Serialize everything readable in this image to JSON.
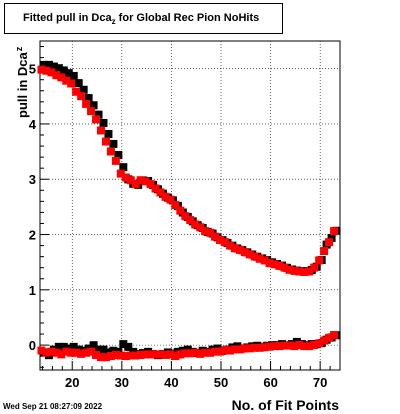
{
  "chart_data": {
    "type": "scatter",
    "title": {
      "main": "Fitted pull in Dca",
      "sub": "z",
      "rest": " for Global Rec Pion NoHits"
    },
    "xlabel": "No. of Fit Points",
    "ylabel": {
      "main": "pull in Dca",
      "sub": "z"
    },
    "xlim": [
      13.5,
      74
    ],
    "ylim": [
      -0.45,
      5.5
    ],
    "xticks": [
      20,
      30,
      40,
      50,
      60,
      70
    ],
    "yticks": [
      0,
      1,
      2,
      3,
      4,
      5
    ],
    "grid": true,
    "grid_style": "dotted",
    "marker": "square",
    "series": [
      {
        "color": "#000000",
        "groups": [
          {
            "x": [
              14,
              15,
              16,
              17,
              18,
              19,
              20,
              21,
              22,
              23,
              24,
              25,
              26,
              27,
              28,
              29,
              30,
              31,
              32,
              33,
              34,
              35,
              36,
              37,
              38,
              39,
              40,
              41,
              42,
              43,
              44,
              45,
              46,
              47,
              48,
              49,
              50,
              51,
              52,
              53,
              54,
              55,
              56,
              57,
              58,
              59,
              60,
              61,
              62,
              63,
              64,
              65,
              66,
              67,
              68,
              69,
              70,
              71,
              72,
              73
            ],
            "y": [
              5.05,
              5.05,
              5.02,
              4.99,
              4.95,
              4.9,
              4.85,
              4.72,
              4.6,
              4.45,
              4.32,
              4.15,
              4.0,
              3.8,
              3.62,
              3.42,
              3.2,
              2.98,
              2.9,
              2.88,
              2.96,
              2.95,
              2.88,
              2.8,
              2.72,
              2.65,
              2.6,
              2.5,
              2.38,
              2.3,
              2.22,
              2.15,
              2.1,
              2.03,
              2.0,
              1.93,
              1.88,
              1.83,
              1.78,
              1.73,
              1.7,
              1.66,
              1.62,
              1.58,
              1.55,
              1.52,
              1.48,
              1.45,
              1.42,
              1.38,
              1.35,
              1.33,
              1.32,
              1.32,
              1.34,
              1.4,
              1.52,
              1.8,
              1.92,
              2.05
            ]
          },
          {
            "x": [
              14,
              15,
              16,
              17,
              18,
              19,
              20,
              21,
              22,
              23,
              24,
              25,
              26,
              27,
              28,
              29,
              30,
              31,
              32,
              33,
              34,
              35,
              36,
              37,
              38,
              39,
              40,
              41,
              42,
              43,
              44,
              45,
              46,
              47,
              48,
              49,
              50,
              51,
              52,
              53,
              54,
              55,
              56,
              57,
              58,
              59,
              60,
              61,
              62,
              63,
              64,
              65,
              66,
              67,
              68,
              69,
              70,
              71,
              72,
              73
            ],
            "y": [
              -0.15,
              -0.2,
              -0.1,
              -0.05,
              -0.05,
              -0.08,
              -0.05,
              -0.1,
              -0.12,
              -0.08,
              -0.02,
              -0.1,
              -0.1,
              -0.15,
              -0.12,
              -0.14,
              0.0,
              -0.05,
              -0.14,
              -0.18,
              -0.16,
              -0.14,
              -0.18,
              -0.2,
              -0.18,
              -0.15,
              -0.17,
              -0.14,
              -0.12,
              -0.1,
              -0.14,
              -0.16,
              -0.12,
              -0.14,
              -0.1,
              -0.08,
              -0.12,
              -0.1,
              -0.06,
              -0.04,
              -0.08,
              -0.06,
              -0.04,
              -0.03,
              -0.05,
              -0.03,
              -0.02,
              -0.02,
              0.0,
              -0.02,
              0.0,
              0.04,
              0.0,
              -0.02,
              0.0,
              0.0,
              0.02,
              0.08,
              0.12,
              0.16
            ]
          }
        ]
      },
      {
        "color": "#ff0000",
        "groups": [
          {
            "x": [
              14,
              15,
              16,
              17,
              18,
              19,
              20,
              21,
              22,
              23,
              24,
              25,
              26,
              27,
              28,
              29,
              30,
              31,
              32,
              33,
              34,
              35,
              36,
              37,
              38,
              39,
              40,
              41,
              42,
              43,
              44,
              45,
              46,
              47,
              48,
              49,
              50,
              51,
              52,
              53,
              54,
              55,
              56,
              57,
              58,
              59,
              60,
              61,
              62,
              63,
              64,
              65,
              66,
              67,
              68,
              69,
              70,
              71,
              72,
              73
            ],
            "y": [
              5.0,
              4.98,
              4.95,
              4.9,
              4.86,
              4.8,
              4.75,
              4.6,
              4.52,
              4.38,
              4.25,
              4.1,
              3.9,
              3.7,
              3.52,
              3.35,
              3.12,
              3.05,
              3.0,
              2.93,
              3.0,
              2.98,
              2.93,
              2.85,
              2.78,
              2.7,
              2.65,
              2.55,
              2.45,
              2.35,
              2.28,
              2.2,
              2.15,
              2.08,
              2.05,
              1.98,
              1.92,
              1.88,
              1.82,
              1.77,
              1.74,
              1.7,
              1.66,
              1.62,
              1.58,
              1.55,
              1.5,
              1.48,
              1.45,
              1.42,
              1.38,
              1.36,
              1.35,
              1.34,
              1.35,
              1.42,
              1.55,
              1.72,
              1.88,
              2.08
            ]
          },
          {
            "x": [
              14,
              15,
              16,
              17,
              18,
              19,
              20,
              21,
              22,
              23,
              24,
              25,
              26,
              27,
              28,
              29,
              30,
              31,
              32,
              33,
              34,
              35,
              36,
              37,
              38,
              39,
              40,
              41,
              42,
              43,
              44,
              45,
              46,
              47,
              48,
              49,
              50,
              51,
              52,
              53,
              54,
              55,
              56,
              57,
              58,
              59,
              60,
              61,
              62,
              63,
              64,
              65,
              66,
              67,
              68,
              69,
              70,
              71,
              72,
              73
            ],
            "y": [
              -0.08,
              -0.12,
              -0.1,
              -0.12,
              -0.15,
              -0.1,
              -0.12,
              -0.12,
              -0.14,
              -0.12,
              -0.1,
              -0.16,
              -0.2,
              -0.2,
              -0.18,
              -0.16,
              -0.17,
              -0.18,
              -0.17,
              -0.17,
              -0.16,
              -0.15,
              -0.15,
              -0.15,
              -0.15,
              -0.16,
              -0.15,
              -0.18,
              -0.15,
              -0.13,
              -0.13,
              -0.12,
              -0.14,
              -0.12,
              -0.12,
              -0.1,
              -0.1,
              -0.07,
              -0.08,
              -0.06,
              -0.06,
              -0.04,
              -0.04,
              -0.03,
              -0.03,
              -0.02,
              -0.01,
              0.0,
              0.0,
              0.01,
              0.01,
              0.0,
              0.02,
              0.0,
              0.0,
              0.02,
              0.05,
              0.1,
              0.15,
              0.2
            ]
          }
        ]
      }
    ]
  },
  "footer": {
    "timestamp": "Wed Sep 21 08:27:09 2022"
  }
}
